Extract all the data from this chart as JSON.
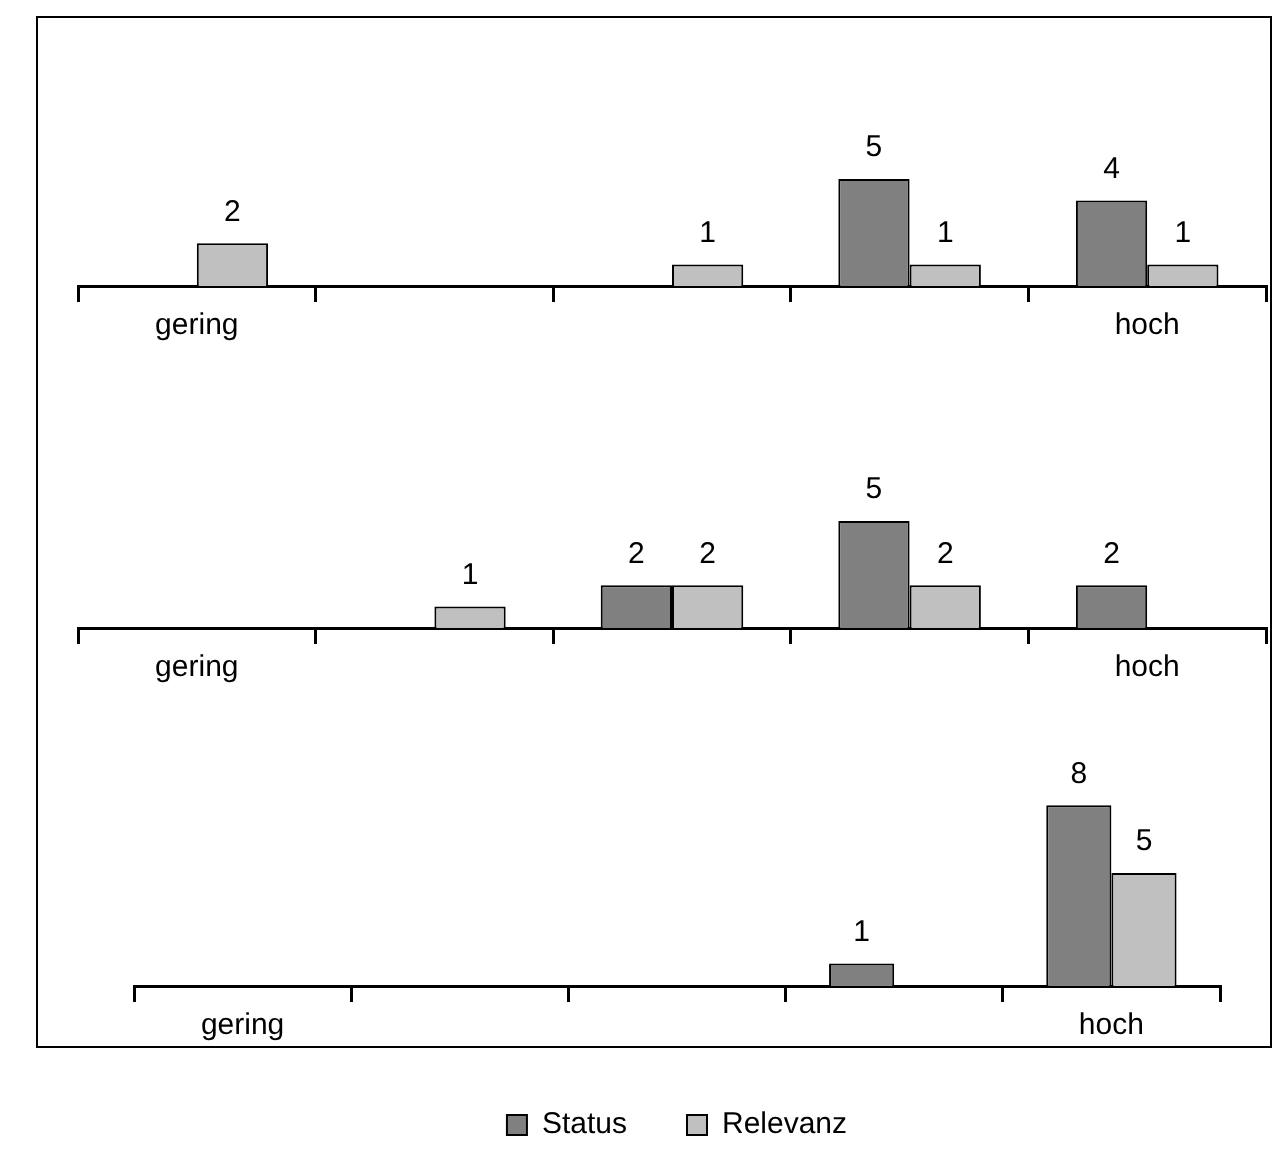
{
  "chart_data": [
    {
      "type": "bar",
      "categories": [
        "gering",
        null,
        null,
        null,
        "hoch"
      ],
      "data_labels": true,
      "legend": false,
      "grid": false,
      "tick_labels": "x",
      "series": [
        {
          "color": "#808080",
          "values": [
            null,
            null,
            null,
            5,
            4
          ]
        },
        {
          "color": "#c0c0c0",
          "values": [
            2,
            null,
            1,
            1,
            1
          ]
        }
      ]
    },
    {
      "type": "bar",
      "categories": [
        "gering",
        null,
        null,
        null,
        "hoch"
      ],
      "data_labels": true,
      "legend": false,
      "grid": false,
      "tick_labels": "x",
      "series": [
        {
          "color": "#808080",
          "values": [
            null,
            null,
            2,
            5,
            2
          ]
        },
        {
          "color": "#c0c0c0",
          "values": [
            null,
            1,
            2,
            2,
            null
          ]
        }
      ]
    },
    {
      "type": "bar",
      "categories": [
        "gering",
        null,
        null,
        null,
        "hoch"
      ],
      "data_labels": true,
      "legend": "bottom",
      "grid": false,
      "tick_labels": "x",
      "series": [
        {
          "name": "Status",
          "color": "#808080",
          "values": [
            null,
            null,
            null,
            1,
            8
          ]
        },
        {
          "name": "Relevanz",
          "color": "#c0c0c0",
          "values": [
            null,
            null,
            null,
            null,
            5
          ]
        }
      ]
    }
  ]
}
